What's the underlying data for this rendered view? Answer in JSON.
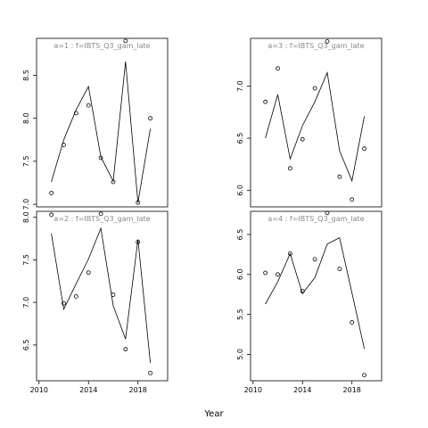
{
  "xlabel": "Year",
  "chart_data": [
    {
      "type": "scatter+line",
      "title": "a=1  :  f=IBTS_Q3_gam_late",
      "x": [
        2011,
        2012,
        2013,
        2014,
        2015,
        2016,
        2017,
        2018,
        2019
      ],
      "observed": [
        7.13,
        7.69,
        8.06,
        8.15,
        7.54,
        7.26,
        8.9,
        7.02,
        8.0
      ],
      "fitted": [
        7.26,
        7.75,
        8.1,
        8.37,
        7.55,
        7.27,
        8.66,
        7.02,
        7.88
      ],
      "xlim": [
        2009.8,
        2020.4
      ],
      "ylim": [
        6.97,
        8.93
      ],
      "yticks": [
        7.0,
        7.5,
        8.0,
        8.5
      ],
      "xticks": []
    },
    {
      "type": "scatter+line",
      "title": "a=3  :  f=IBTS_Q3_gam_late",
      "x": [
        2011,
        2012,
        2013,
        2014,
        2015,
        2016,
        2017,
        2018,
        2019
      ],
      "observed": [
        6.85,
        7.17,
        6.21,
        6.49,
        6.98,
        7.43,
        6.13,
        5.91,
        6.4
      ],
      "fitted": [
        6.5,
        6.92,
        6.3,
        6.62,
        6.85,
        7.13,
        6.38,
        6.09,
        6.71
      ],
      "xlim": [
        2009.8,
        2020.4
      ],
      "ylim": [
        5.84,
        7.46
      ],
      "yticks": [
        6.0,
        6.5,
        7.0
      ],
      "xticks": []
    },
    {
      "type": "scatter+line",
      "title": "a=2  :  f=IBTS_Q3_gam_late",
      "x": [
        2011,
        2012,
        2013,
        2014,
        2015,
        2016,
        2017,
        2018,
        2019
      ],
      "observed": [
        8.03,
        6.99,
        7.07,
        7.35,
        8.04,
        7.09,
        6.45,
        7.71,
        6.17
      ],
      "fitted": [
        7.81,
        6.92,
        7.22,
        7.51,
        7.87,
        6.96,
        6.57,
        7.74,
        6.29
      ],
      "xlim": [
        2009.8,
        2020.4
      ],
      "ylim": [
        6.08,
        8.07
      ],
      "yticks": [
        6.5,
        7.0,
        7.5,
        8.0
      ],
      "xticks": [
        2010,
        2014,
        2018
      ]
    },
    {
      "type": "scatter+line",
      "title": "a=4  :  f=IBTS_Q3_gam_late",
      "x": [
        2011,
        2012,
        2013,
        2014,
        2015,
        2016,
        2017,
        2018,
        2019
      ],
      "observed": [
        6.02,
        6.0,
        6.26,
        5.79,
        6.19,
        6.77,
        6.07,
        5.4,
        4.74
      ],
      "fitted": [
        5.63,
        5.91,
        6.26,
        5.76,
        5.96,
        6.38,
        6.46,
        5.77,
        5.07
      ],
      "xlim": [
        2009.8,
        2020.4
      ],
      "ylim": [
        4.67,
        6.79
      ],
      "yticks": [
        5.0,
        5.5,
        6.0,
        6.5
      ],
      "xticks": [
        2010,
        2014,
        2018
      ]
    }
  ]
}
